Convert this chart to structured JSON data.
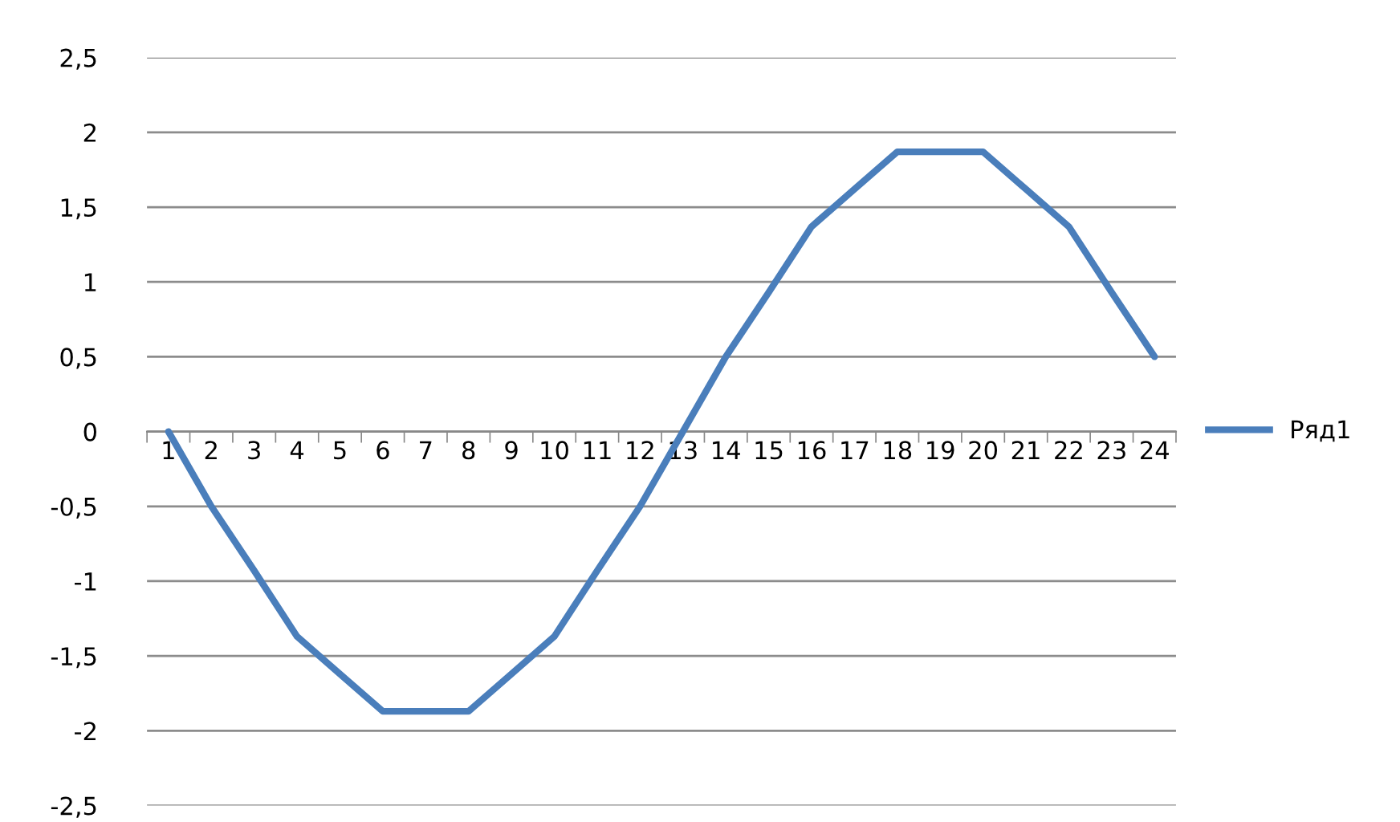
{
  "chart_data": {
    "type": "line",
    "categories": [
      "1",
      "2",
      "3",
      "4",
      "5",
      "6",
      "7",
      "8",
      "9",
      "10",
      "11",
      "12",
      "13",
      "14",
      "15",
      "16",
      "17",
      "18",
      "19",
      "20",
      "21",
      "22",
      "23",
      "24"
    ],
    "series": [
      {
        "name": "Ряд1",
        "color": "#4a7ebb",
        "values": [
          0,
          -0.5,
          -0.93,
          -1.37,
          -1.62,
          -1.87,
          -1.87,
          -1.87,
          -1.62,
          -1.37,
          -0.93,
          -0.5,
          0,
          0.5,
          0.93,
          1.37,
          1.62,
          1.87,
          1.87,
          1.87,
          1.62,
          1.37,
          0.93,
          0.5
        ]
      }
    ],
    "ylim": [
      -2.5,
      2.5
    ],
    "yticks": [
      {
        "value": -2.5,
        "label": "-2,5"
      },
      {
        "value": -2,
        "label": "-2"
      },
      {
        "value": -1.5,
        "label": "-1,5"
      },
      {
        "value": -1,
        "label": "-1"
      },
      {
        "value": -0.5,
        "label": "-0,5"
      },
      0,
      {
        "value": 0.5,
        "label": "0,5"
      },
      1,
      {
        "value": 1.5,
        "label": "1,5"
      },
      2,
      {
        "value": 2.5,
        "label": "2,5"
      }
    ],
    "grid": "y",
    "legend": "right",
    "marker": "none",
    "line_style": "solid"
  }
}
